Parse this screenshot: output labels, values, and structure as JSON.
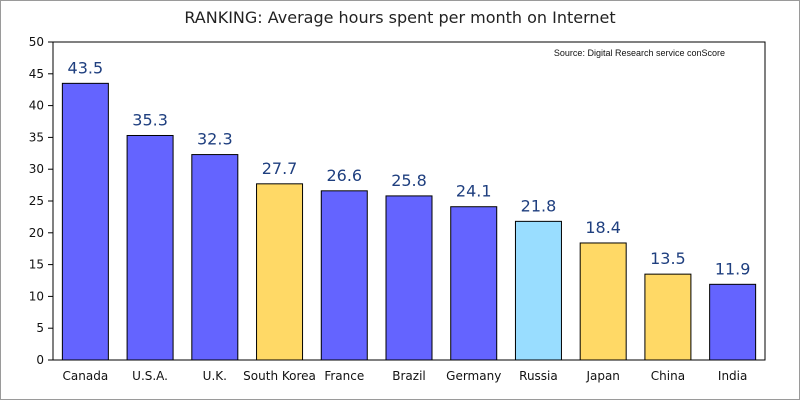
{
  "chart_data": {
    "type": "bar",
    "title": "RANKING: Average hours spent per month on Internet",
    "source": "Source: Digital Research service conScore",
    "xlabel": "",
    "ylabel": "",
    "ylim": [
      0,
      50
    ],
    "yticks": [
      0,
      5,
      10,
      15,
      20,
      25,
      30,
      35,
      40,
      45,
      50
    ],
    "categories": [
      "Canada",
      "U.S.A.",
      "U.K.",
      "South Korea",
      "France",
      "Brazil",
      "Germany",
      "Russia",
      "Japan",
      "China",
      "India"
    ],
    "values": [
      43.5,
      35.3,
      32.3,
      27.7,
      26.6,
      25.8,
      24.1,
      21.8,
      18.4,
      13.5,
      11.9
    ],
    "value_labels": [
      "43.5",
      "35.3",
      "32.3",
      "27.7",
      "26.6",
      "25.8",
      "24.1",
      "21.8",
      "18.4",
      "13.5",
      "11.9"
    ],
    "bar_colors": [
      "#6464ff",
      "#6464ff",
      "#6464ff",
      "#ffd966",
      "#6464ff",
      "#6464ff",
      "#6464ff",
      "#99ddff",
      "#ffd966",
      "#ffd966",
      "#6464ff"
    ],
    "grid": false,
    "legend": "none"
  }
}
